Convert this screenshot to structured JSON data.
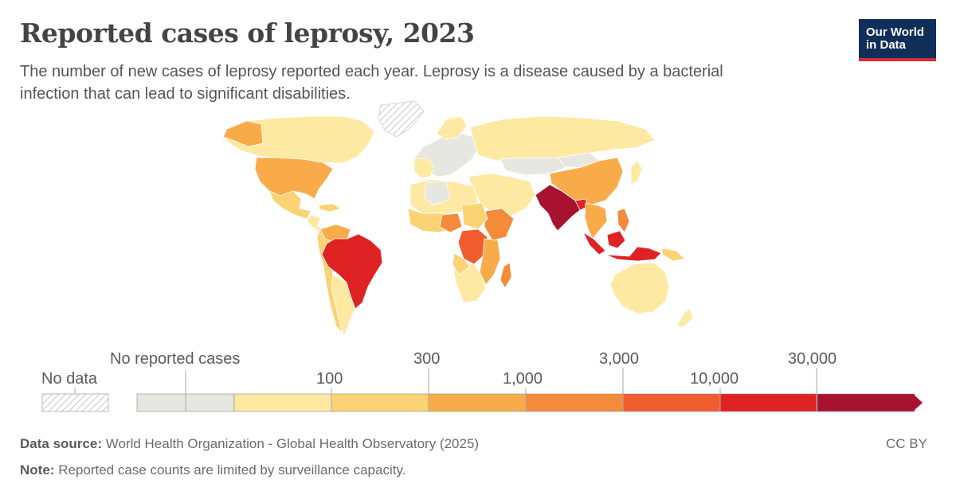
{
  "header": {
    "title": "Reported cases of leprosy, 2023",
    "subtitle": "The number of new cases of leprosy reported each year. Leprosy is a disease caused by a bacterial infection that can lead to significant disabilities."
  },
  "logo": {
    "line1": "Our World",
    "line2": "in Data"
  },
  "legend": {
    "no_data_label": "No data",
    "no_cases_label": "No reported cases",
    "thresholds": [
      "100",
      "300",
      "1,000",
      "3,000",
      "10,000",
      "30,000"
    ],
    "colors": [
      "#e5e7e0",
      "#fde9a1",
      "#fbd274",
      "#f9ab4a",
      "#f48b3a",
      "#f15c2e",
      "#df2325",
      "#a91131"
    ]
  },
  "footer": {
    "source_label": "Data source:",
    "source_text": "World Health Organization - Global Health Observatory (2025)",
    "note_label": "Note:",
    "note_text": "Reported case counts are limited by surveillance capacity.",
    "license": "CC BY"
  }
}
